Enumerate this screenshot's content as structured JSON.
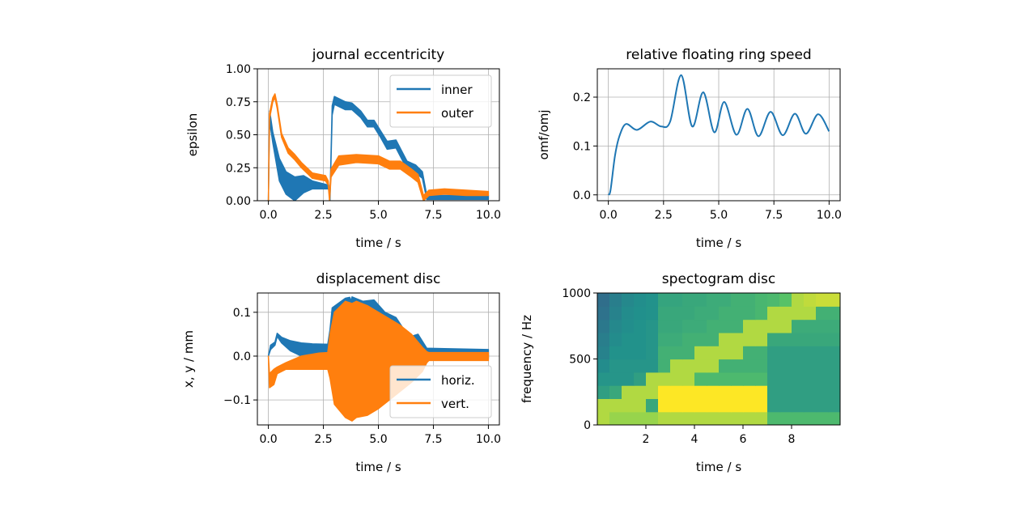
{
  "colors": {
    "blue": "#1f77b4",
    "orange": "#ff7f0e",
    "grid": "#b0b0b0",
    "colormap": "viridis"
  },
  "chart_data": [
    {
      "type": "line",
      "title": "journal eccentricity",
      "xlabel": "time / s",
      "ylabel": "epsilon",
      "xlim": [
        -0.5,
        10.5
      ],
      "ylim": [
        0,
        1
      ],
      "grid": true,
      "xticks": [
        0,
        2.5,
        5,
        7.5,
        10
      ],
      "xticklabels": [
        "0.0",
        "2.5",
        "5.0",
        "7.5",
        "10.0"
      ],
      "yticks": [
        0,
        0.25,
        0.5,
        0.75,
        1
      ],
      "yticklabels": [
        "0.00",
        "0.25",
        "0.50",
        "0.75",
        "1.00"
      ],
      "legend": "upper right",
      "series": [
        {
          "name": "inner",
          "color": "#1f77b4",
          "x": [
            0,
            0.03,
            0.06,
            0.2,
            0.5,
            0.8,
            1.2,
            1.6,
            2.0,
            2.7,
            2.74,
            2.8,
            2.9,
            3.0,
            3.5,
            3.8,
            4.2,
            4.5,
            4.8,
            5.1,
            5.4,
            5.8,
            6.3,
            6.7,
            7.0,
            7.2,
            8.0,
            9.0,
            10.0
          ],
          "upper": [
            0,
            0.4,
            0.68,
            0.52,
            0.32,
            0.22,
            0.18,
            0.19,
            0.15,
            0.12,
            0.12,
            0.02,
            0.72,
            0.79,
            0.75,
            0.74,
            0.68,
            0.61,
            0.61,
            0.53,
            0.45,
            0.46,
            0.3,
            0.27,
            0.22,
            0.04,
            0.04,
            0.04,
            0.04
          ],
          "lower": [
            0,
            0.35,
            0.6,
            0.44,
            0.15,
            0.05,
            0.0,
            0.06,
            0.09,
            0.09,
            0.09,
            0.0,
            0.65,
            0.73,
            0.69,
            0.69,
            0.63,
            0.56,
            0.56,
            0.48,
            0.39,
            0.4,
            0.24,
            0.21,
            0.17,
            0.01,
            0.01,
            0.01,
            0.01
          ]
        },
        {
          "name": "outer",
          "color": "#ff7f0e",
          "x": [
            0,
            0.05,
            0.2,
            0.3,
            0.4,
            0.6,
            0.9,
            1.2,
            1.5,
            2.0,
            2.6,
            2.72,
            2.78,
            2.85,
            3.2,
            4.0,
            5.0,
            5.5,
            6.0,
            6.5,
            6.8,
            7.05,
            7.3,
            8.0,
            9.0,
            10.0
          ],
          "upper": [
            0,
            0.66,
            0.78,
            0.81,
            0.73,
            0.51,
            0.4,
            0.35,
            0.29,
            0.21,
            0.19,
            0.15,
            0.02,
            0.24,
            0.34,
            0.35,
            0.34,
            0.3,
            0.3,
            0.24,
            0.2,
            0.04,
            0.08,
            0.09,
            0.08,
            0.07
          ],
          "lower": [
            0,
            0.62,
            0.75,
            0.78,
            0.7,
            0.48,
            0.36,
            0.31,
            0.25,
            0.17,
            0.15,
            0.12,
            0.0,
            0.18,
            0.27,
            0.29,
            0.28,
            0.24,
            0.24,
            0.18,
            0.14,
            0.0,
            0.04,
            0.05,
            0.04,
            0.04
          ]
        }
      ]
    },
    {
      "type": "line",
      "title": "relative floating ring speed",
      "xlabel": "time / s",
      "ylabel": "omf/omj",
      "xlim": [
        -0.5,
        10.5
      ],
      "ylim": [
        -0.012,
        0.258
      ],
      "grid": true,
      "xticks": [
        0,
        2.5,
        5,
        7.5,
        10
      ],
      "xticklabels": [
        "0.0",
        "2.5",
        "5.0",
        "7.5",
        "10.0"
      ],
      "yticks": [
        0,
        0.1,
        0.2
      ],
      "yticklabels": [
        "0.0",
        "0.1",
        "0.2"
      ],
      "series": [
        {
          "color": "#1f77b4",
          "x": [
            0,
            0.1,
            0.3,
            0.5,
            0.8,
            1.3,
            1.9,
            2.4,
            2.8,
            3.3,
            3.8,
            4.3,
            4.8,
            5.25,
            5.8,
            6.3,
            6.8,
            7.35,
            7.9,
            8.45,
            8.95,
            9.5,
            10.0
          ],
          "y": [
            0,
            0.01,
            0.08,
            0.12,
            0.145,
            0.133,
            0.15,
            0.14,
            0.15,
            0.245,
            0.14,
            0.21,
            0.128,
            0.19,
            0.123,
            0.176,
            0.12,
            0.17,
            0.122,
            0.166,
            0.125,
            0.165,
            0.13
          ]
        }
      ]
    },
    {
      "type": "line",
      "title": "displacement disc",
      "xlabel": "time / s",
      "ylabel": "x, y / mm",
      "xlim": [
        -0.5,
        10.5
      ],
      "ylim": [
        -0.157,
        0.144
      ],
      "grid": true,
      "xticks": [
        0,
        2.5,
        5,
        7.5,
        10
      ],
      "xticklabels": [
        "0.0",
        "2.5",
        "5.0",
        "7.5",
        "10.0"
      ],
      "yticks": [
        -0.1,
        0,
        0.1
      ],
      "yticklabels": [
        "−0.1",
        "0.0",
        "0.1"
      ],
      "legend": "lower right",
      "series": [
        {
          "name": "horiz.",
          "color": "#1f77b4",
          "x": [
            0,
            0.1,
            0.3,
            0.4,
            0.6,
            1.0,
            1.5,
            2.0,
            2.7,
            2.8,
            2.9,
            3.5,
            3.7,
            3.75,
            3.8,
            4.3,
            4.8,
            5.3,
            5.8,
            6.3,
            6.5,
            6.8,
            7.2,
            8.0,
            10.0
          ],
          "upper": [
            0,
            0.025,
            0.032,
            0.052,
            0.043,
            0.035,
            0.03,
            0.028,
            0.027,
            0.06,
            0.11,
            0.132,
            0.134,
            0.125,
            0.135,
            0.125,
            0.128,
            0.1,
            0.088,
            0.05,
            0.045,
            0.05,
            0.018,
            0.017,
            0.015
          ],
          "lower": [
            0,
            0.015,
            0.025,
            0.045,
            0.03,
            0.012,
            0.0,
            0.003,
            0.007,
            0.0,
            0.0,
            -0.005,
            -0.005,
            -0.005,
            -0.005,
            -0.005,
            -0.005,
            -0.005,
            -0.005,
            -0.005,
            -0.005,
            -0.005,
            -0.005,
            -0.005,
            -0.005
          ]
        },
        {
          "name": "vert.",
          "color": "#ff7f0e",
          "x": [
            0,
            0.05,
            0.25,
            0.4,
            0.8,
            1.5,
            2.3,
            2.7,
            2.8,
            3.0,
            3.5,
            3.8,
            4.0,
            4.5,
            5.0,
            5.5,
            6.0,
            6.5,
            7.0,
            7.2,
            7.3,
            10.0
          ],
          "upper": [
            0,
            -0.04,
            -0.03,
            -0.025,
            -0.015,
            0.0,
            0.007,
            0.008,
            0.05,
            0.1,
            0.125,
            0.12,
            0.125,
            0.115,
            0.1,
            0.085,
            0.07,
            0.05,
            0.02,
            0.01,
            0.008,
            0.008
          ],
          "lower": [
            0,
            -0.072,
            -0.065,
            -0.04,
            -0.03,
            -0.03,
            -0.03,
            -0.03,
            -0.05,
            -0.11,
            -0.14,
            -0.148,
            -0.14,
            -0.135,
            -0.12,
            -0.1,
            -0.08,
            -0.06,
            -0.035,
            -0.015,
            -0.01,
            -0.01
          ]
        }
      ]
    },
    {
      "type": "heatmap",
      "title": "spectogram disc",
      "xlabel": "time / s",
      "ylabel": "frequency / Hz",
      "xlim": [
        0,
        10
      ],
      "ylim": [
        0,
        1000
      ],
      "grid": false,
      "xticks": [
        2,
        4,
        6,
        8
      ],
      "xticklabels": [
        "2",
        "4",
        "6",
        "8"
      ],
      "yticks": [
        0,
        500,
        1000
      ],
      "yticklabels": [
        "0",
        "500",
        "1000"
      ],
      "clim": [
        -0.25,
        1
      ],
      "x": [
        0.25,
        0.75,
        1.25,
        1.75,
        2.25,
        2.75,
        3.25,
        3.75,
        4.25,
        4.75,
        5.25,
        5.75,
        6.25,
        6.75,
        7.25,
        7.75,
        8.25,
        8.75,
        9.25,
        9.75
      ],
      "y": [
        50,
        150,
        250,
        350,
        450,
        550,
        650,
        750,
        850,
        950
      ],
      "z": [
        [
          0.85,
          0.8,
          0.8,
          0.8,
          0.8,
          0.85,
          0.85,
          0.85,
          0.85,
          0.85,
          0.85,
          0.85,
          0.85,
          0.85,
          0.6,
          0.6,
          0.6,
          0.6,
          0.6,
          0.6
        ],
        [
          0.85,
          0.85,
          0.85,
          0.85,
          0.5,
          1,
          1,
          1,
          1,
          1,
          1,
          1,
          1,
          1,
          0.45,
          0.45,
          0.45,
          0.45,
          0.45,
          0.45
        ],
        [
          0.45,
          0.5,
          0.85,
          0.85,
          0.85,
          1,
          1,
          1,
          1,
          1,
          1,
          1,
          1,
          1,
          0.45,
          0.45,
          0.45,
          0.45,
          0.45,
          0.45
        ],
        [
          0.4,
          0.4,
          0.4,
          0.45,
          0.85,
          0.85,
          0.85,
          0.85,
          0.6,
          0.6,
          0.6,
          0.6,
          0.6,
          0.6,
          0.45,
          0.45,
          0.45,
          0.45,
          0.45,
          0.45
        ],
        [
          0.35,
          0.4,
          0.4,
          0.4,
          0.4,
          0.55,
          0.85,
          0.85,
          0.85,
          0.85,
          0.55,
          0.55,
          0.55,
          0.55,
          0.45,
          0.45,
          0.45,
          0.45,
          0.45,
          0.45
        ],
        [
          0.3,
          0.38,
          0.38,
          0.38,
          0.4,
          0.55,
          0.55,
          0.55,
          0.85,
          0.85,
          0.85,
          0.85,
          0.55,
          0.55,
          0.45,
          0.45,
          0.45,
          0.45,
          0.45,
          0.45
        ],
        [
          0.28,
          0.35,
          0.38,
          0.38,
          0.4,
          0.52,
          0.52,
          0.55,
          0.55,
          0.55,
          0.85,
          0.85,
          0.85,
          0.85,
          0.5,
          0.5,
          0.5,
          0.5,
          0.5,
          0.5
        ],
        [
          0.25,
          0.33,
          0.36,
          0.38,
          0.4,
          0.5,
          0.5,
          0.52,
          0.52,
          0.55,
          0.55,
          0.55,
          0.85,
          0.85,
          0.85,
          0.85,
          0.52,
          0.52,
          0.52,
          0.52
        ],
        [
          0.22,
          0.3,
          0.35,
          0.37,
          0.38,
          0.5,
          0.5,
          0.5,
          0.52,
          0.52,
          0.55,
          0.55,
          0.55,
          0.58,
          0.85,
          0.85,
          0.85,
          0.85,
          0.55,
          0.55
        ],
        [
          0.2,
          0.28,
          0.33,
          0.36,
          0.38,
          0.48,
          0.48,
          0.5,
          0.5,
          0.52,
          0.52,
          0.55,
          0.55,
          0.58,
          0.6,
          0.65,
          0.85,
          0.88,
          0.9,
          0.9
        ]
      ]
    }
  ]
}
